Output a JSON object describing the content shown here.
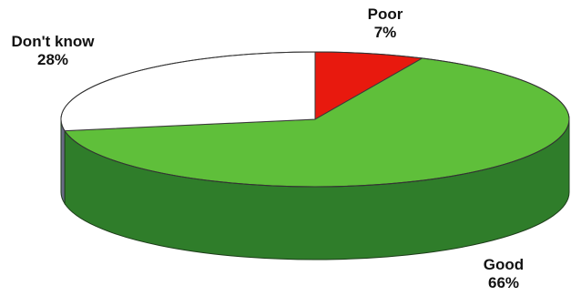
{
  "chart_data": {
    "type": "pie",
    "style": "3d",
    "slices": [
      {
        "label": "Poor",
        "value_label": "7%",
        "value": 7,
        "color": "#e8190e",
        "side_color": "#a81008"
      },
      {
        "label": "Good",
        "value_label": "66%",
        "value": 66,
        "color": "#5fbf3a",
        "side_color": "#2f7d2a"
      },
      {
        "label": "Don't know",
        "value_label": "28%",
        "value": 28,
        "color": "#ffffff",
        "side_color": "#6a6a86"
      }
    ]
  }
}
